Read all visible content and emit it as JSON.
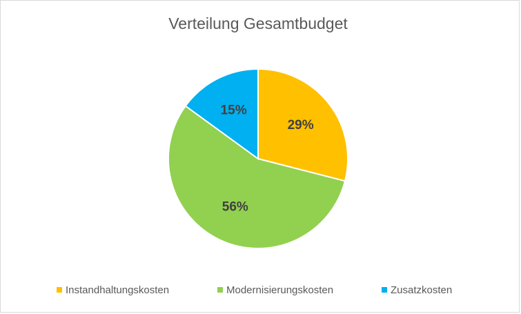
{
  "chart_data": {
    "type": "pie",
    "title": "Verteilung Gesamtbudget",
    "categories": [
      "Instandhaltungskosten",
      "Modernisierungskosten",
      "Zusatzkosten"
    ],
    "values": [
      29,
      56,
      15
    ],
    "value_labels": [
      "29%",
      "56%",
      "15%"
    ],
    "colors": [
      "#FFC000",
      "#92D050",
      "#00B0F0"
    ],
    "legend": "bottom"
  }
}
